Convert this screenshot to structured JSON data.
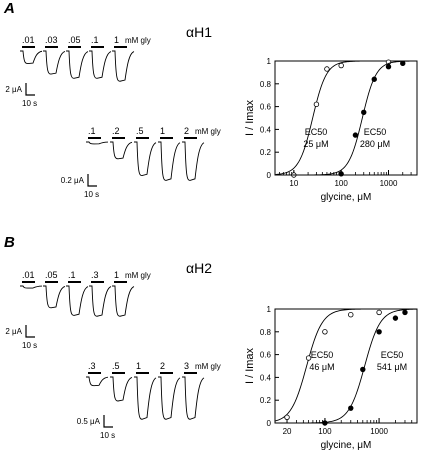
{
  "panels": [
    {
      "letter": "A",
      "title": "αH1",
      "rows": [
        {
          "concentrations": [
            ".01",
            ".03",
            ".05",
            ".1",
            "1"
          ],
          "amplitudes": [
            0.3,
            0.55,
            0.65,
            0.65,
            0.72
          ],
          "unit_label": "mM gly",
          "scale_y": "2 μA",
          "scale_x": "10 s"
        },
        {
          "concentrations": [
            ".1",
            ".2",
            ".5",
            "1",
            "2"
          ],
          "amplitudes": [
            0.04,
            0.35,
            0.7,
            0.8,
            0.8
          ],
          "unit_label": "mM gly",
          "scale_y": "0.2 μA",
          "scale_x": "10 s"
        }
      ]
    },
    {
      "letter": "B",
      "title": "αH2",
      "rows": [
        {
          "concentrations": [
            ".01",
            ".05",
            ".1",
            ".3",
            "1"
          ],
          "amplitudes": [
            0.05,
            0.52,
            0.7,
            0.72,
            0.72
          ],
          "unit_label": "mM gly",
          "scale_y": "2 μA",
          "scale_x": "10 s"
        },
        {
          "concentrations": [
            ".3",
            ".5",
            "1",
            "2",
            "3"
          ],
          "amplitudes": [
            0.18,
            0.5,
            0.88,
            0.88,
            0.88
          ],
          "unit_label": "mM gly",
          "scale_y": "0.5 μA",
          "scale_x": "10 s"
        }
      ]
    }
  ],
  "chart_data": [
    {
      "type": "scatter",
      "ylabel": "I / Imax",
      "xlabel": "glycine, μM",
      "xscale": "log",
      "xlim": [
        4,
        4000
      ],
      "ylim": [
        0,
        1
      ],
      "xticks": [
        "10",
        "100",
        "1000"
      ],
      "yticks": [
        "0",
        "0.2",
        "0.4",
        "0.6",
        "0.8",
        "1"
      ],
      "annotations": [
        {
          "label": "EC50",
          "value": "25 μM"
        },
        {
          "label": "EC50",
          "value": "280 μM"
        }
      ],
      "series": [
        {
          "marker": "open",
          "ec50": 25,
          "hill": 3.0,
          "points": [
            [
              10,
              0.0
            ],
            [
              30,
              0.62
            ],
            [
              50,
              0.93
            ],
            [
              100,
              0.96
            ],
            [
              1000,
              0.99
            ]
          ]
        },
        {
          "marker": "filled",
          "ec50": 280,
          "hill": 3.0,
          "points": [
            [
              100,
              0.01
            ],
            [
              200,
              0.35
            ],
            [
              300,
              0.55
            ],
            [
              500,
              0.84
            ],
            [
              1000,
              0.95
            ],
            [
              2000,
              0.98
            ]
          ]
        }
      ]
    },
    {
      "type": "scatter",
      "ylabel": "I / Imax",
      "xlabel": "glycine, μM",
      "xscale": "log",
      "xlim": [
        12,
        5000
      ],
      "ylim": [
        0,
        1
      ],
      "xticks": [
        "20",
        "100",
        "1000"
      ],
      "yticks": [
        "0",
        "0.2",
        "0.4",
        "0.6",
        "0.8",
        "1"
      ],
      "annotations": [
        {
          "label": "EC50",
          "value": "46 μM"
        },
        {
          "label": "EC50",
          "value": "541 μM"
        }
      ],
      "series": [
        {
          "marker": "open",
          "ec50": 46,
          "hill": 3.0,
          "points": [
            [
              20,
              0.05
            ],
            [
              50,
              0.57
            ],
            [
              100,
              0.8
            ],
            [
              300,
              0.95
            ],
            [
              1000,
              0.97
            ]
          ]
        },
        {
          "marker": "filled",
          "ec50": 541,
          "hill": 3.0,
          "points": [
            [
              100,
              0.0
            ],
            [
              300,
              0.13
            ],
            [
              500,
              0.47
            ],
            [
              1000,
              0.8
            ],
            [
              2000,
              0.92
            ],
            [
              3000,
              0.97
            ]
          ]
        }
      ]
    }
  ]
}
